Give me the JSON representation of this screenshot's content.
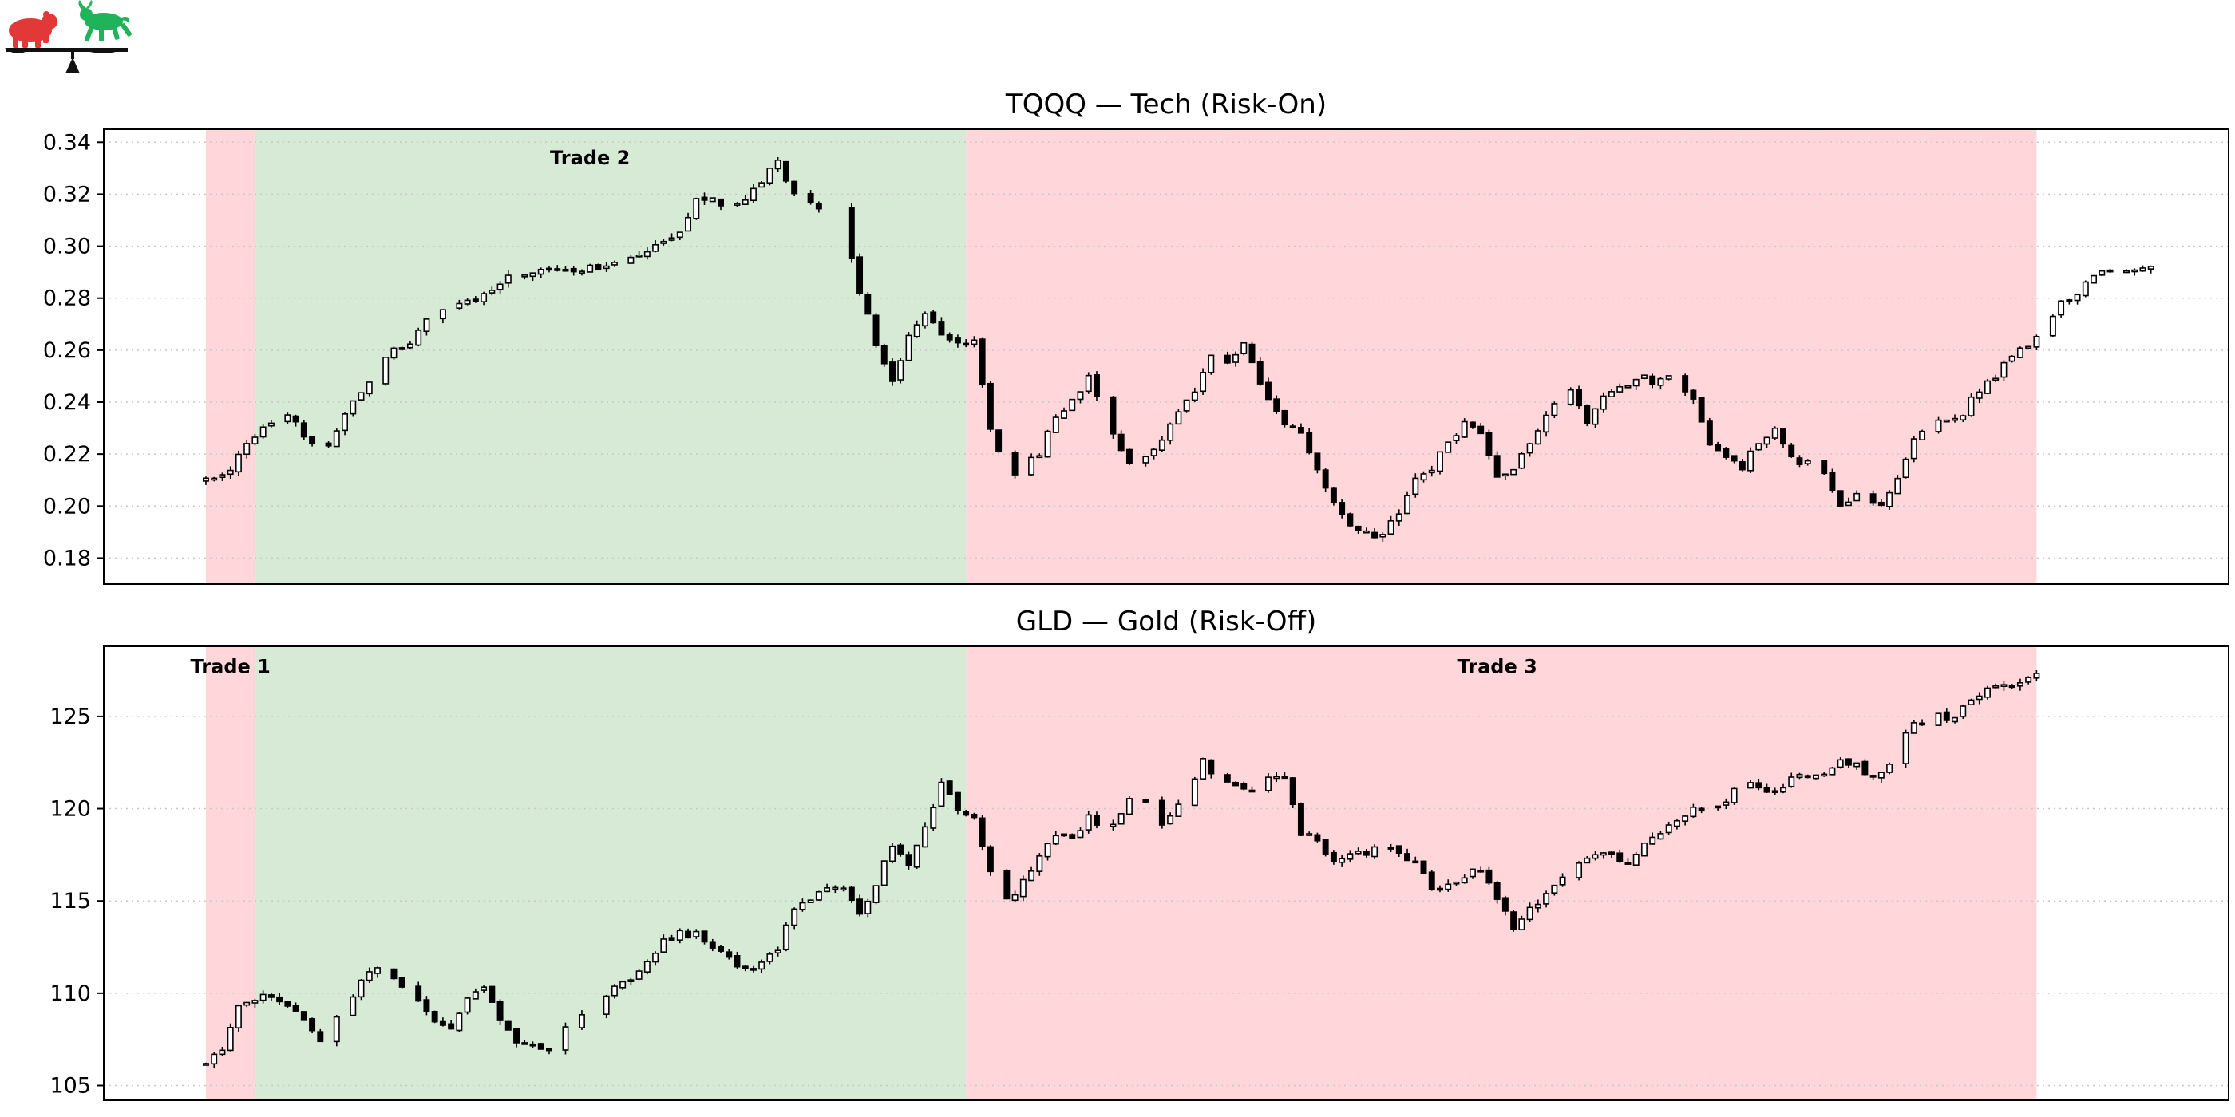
{
  "colors": {
    "risk_on_band": "#d7ead6",
    "risk_off_band": "#ffd6d9",
    "candle_up": "#ffffff",
    "candle_down": "#000000",
    "bear_logo": "#e23838",
    "bull_logo": "#1fb35a"
  },
  "logo": {
    "icon": "bull-bear-balance-scale-icon"
  },
  "chart_data": [
    {
      "type": "candlestick",
      "title": "TQQQ — Tech (Risk-On)",
      "xlabel": "",
      "ylabel": "",
      "ylim": [
        0.17,
        0.345
      ],
      "yticks": [
        0.18,
        0.2,
        0.22,
        0.24,
        0.26,
        0.28,
        0.3,
        0.32,
        0.34
      ],
      "ytick_labels": [
        "0.18",
        "0.20",
        "0.22",
        "0.24",
        "0.26",
        "0.28",
        "0.30",
        "0.32",
        "0.34"
      ],
      "grid": "horizontal-dotted",
      "bars_count": 260,
      "regions": [
        {
          "start_bar": 0,
          "end_bar": 6,
          "shade": "risk-off"
        },
        {
          "start_bar": 6,
          "end_bar": 93,
          "shade": "risk-on"
        },
        {
          "start_bar": 93,
          "end_bar": 224,
          "shade": "risk-off"
        }
      ],
      "annotations": [
        {
          "text": "Trade 2",
          "bar": 47,
          "value": 0.334
        }
      ],
      "anchors": [
        [
          0,
          0.21
        ],
        [
          3,
          0.215
        ],
        [
          5,
          0.225
        ],
        [
          8,
          0.233
        ],
        [
          10,
          0.234
        ],
        [
          13,
          0.225
        ],
        [
          15,
          0.222
        ],
        [
          17,
          0.235
        ],
        [
          20,
          0.247
        ],
        [
          22,
          0.258
        ],
        [
          25,
          0.262
        ],
        [
          28,
          0.275
        ],
        [
          32,
          0.278
        ],
        [
          36,
          0.285
        ],
        [
          38,
          0.29
        ],
        [
          42,
          0.29
        ],
        [
          45,
          0.291
        ],
        [
          48,
          0.292
        ],
        [
          51,
          0.296
        ],
        [
          55,
          0.3
        ],
        [
          58,
          0.306
        ],
        [
          60,
          0.318
        ],
        [
          62,
          0.318
        ],
        [
          65,
          0.315
        ],
        [
          67,
          0.322
        ],
        [
          70,
          0.333
        ],
        [
          72,
          0.32
        ],
        [
          74,
          0.318
        ],
        [
          76,
          0.312
        ],
        [
          78,
          0.31
        ],
        [
          80,
          0.283
        ],
        [
          82,
          0.262
        ],
        [
          84,
          0.248
        ],
        [
          86,
          0.265
        ],
        [
          88,
          0.275
        ],
        [
          90,
          0.265
        ],
        [
          92,
          0.262
        ],
        [
          94,
          0.265
        ],
        [
          96,
          0.23
        ],
        [
          98,
          0.21
        ],
        [
          100,
          0.215
        ],
        [
          102,
          0.22
        ],
        [
          104,
          0.235
        ],
        [
          106,
          0.24
        ],
        [
          108,
          0.25
        ],
        [
          110,
          0.232
        ],
        [
          113,
          0.215
        ],
        [
          116,
          0.222
        ],
        [
          119,
          0.235
        ],
        [
          121,
          0.245
        ],
        [
          123,
          0.258
        ],
        [
          125,
          0.256
        ],
        [
          127,
          0.262
        ],
        [
          129,
          0.248
        ],
        [
          131,
          0.235
        ],
        [
          134,
          0.228
        ],
        [
          136,
          0.215
        ],
        [
          138,
          0.2
        ],
        [
          140,
          0.192
        ],
        [
          142,
          0.19
        ],
        [
          144,
          0.188
        ],
        [
          146,
          0.198
        ],
        [
          148,
          0.21
        ],
        [
          150,
          0.215
        ],
        [
          152,
          0.225
        ],
        [
          154,
          0.232
        ],
        [
          156,
          0.228
        ],
        [
          158,
          0.21
        ],
        [
          160,
          0.215
        ],
        [
          162,
          0.225
        ],
        [
          165,
          0.24
        ],
        [
          167,
          0.245
        ],
        [
          169,
          0.232
        ],
        [
          171,
          0.242
        ],
        [
          173,
          0.245
        ],
        [
          175,
          0.25
        ],
        [
          177,
          0.248
        ],
        [
          180,
          0.25
        ],
        [
          182,
          0.24
        ],
        [
          184,
          0.225
        ],
        [
          186,
          0.218
        ],
        [
          188,
          0.215
        ],
        [
          190,
          0.225
        ],
        [
          192,
          0.23
        ],
        [
          194,
          0.218
        ],
        [
          196,
          0.216
        ],
        [
          198,
          0.213
        ],
        [
          200,
          0.2
        ],
        [
          203,
          0.205
        ],
        [
          205,
          0.2
        ],
        [
          207,
          0.212
        ],
        [
          209,
          0.225
        ],
        [
          211,
          0.232
        ],
        [
          213,
          0.232
        ],
        [
          215,
          0.236
        ],
        [
          217,
          0.245
        ],
        [
          219,
          0.25
        ],
        [
          221,
          0.258
        ],
        [
          223,
          0.262
        ],
        [
          225,
          0.27
        ],
        [
          227,
          0.278
        ],
        [
          229,
          0.28
        ],
        [
          231,
          0.29
        ],
        [
          233,
          0.292
        ],
        [
          235,
          0.29
        ],
        [
          237,
          0.292
        ],
        [
          239,
          0.294
        ]
      ]
    },
    {
      "type": "candlestick",
      "title": "GLD — Gold (Risk-Off)",
      "xlabel": "",
      "ylabel": "",
      "ylim": [
        104.2,
        128.8
      ],
      "yticks": [
        105,
        110,
        115,
        120,
        125
      ],
      "ytick_labels": [
        "105",
        "110",
        "115",
        "120",
        "125"
      ],
      "grid": "horizontal-dotted",
      "bars_count": 260,
      "regions": [
        {
          "start_bar": 0,
          "end_bar": 6,
          "shade": "risk-off"
        },
        {
          "start_bar": 6,
          "end_bar": 93,
          "shade": "risk-on"
        },
        {
          "start_bar": 93,
          "end_bar": 224,
          "shade": "risk-off"
        }
      ],
      "annotations": [
        {
          "text": "Trade 1",
          "bar": 3,
          "value": 127.7
        },
        {
          "text": "Trade 3",
          "bar": 158,
          "value": 127.7
        }
      ],
      "anchors": [
        [
          0,
          106.2
        ],
        [
          2,
          107
        ],
        [
          4,
          109.5
        ],
        [
          6,
          109.7
        ],
        [
          8,
          109.9
        ],
        [
          10,
          109.5
        ],
        [
          12,
          108.5
        ],
        [
          14,
          107.5
        ],
        [
          16,
          108.8
        ],
        [
          18,
          110
        ],
        [
          20,
          111.2
        ],
        [
          22,
          111.2
        ],
        [
          24,
          110.5
        ],
        [
          26,
          109.4
        ],
        [
          28,
          108.5
        ],
        [
          30,
          108.2
        ],
        [
          32,
          109.8
        ],
        [
          34,
          110.2
        ],
        [
          36,
          108.6
        ],
        [
          38,
          107.5
        ],
        [
          40,
          107.2
        ],
        [
          42,
          107
        ],
        [
          44,
          108
        ],
        [
          46,
          108.7
        ],
        [
          48,
          109.7
        ],
        [
          50,
          110.2
        ],
        [
          52,
          110.8
        ],
        [
          54,
          111.8
        ],
        [
          56,
          112.8
        ],
        [
          58,
          113.2
        ],
        [
          60,
          113.2
        ],
        [
          62,
          112.5
        ],
        [
          64,
          112
        ],
        [
          66,
          111.2
        ],
        [
          68,
          111.5
        ],
        [
          70,
          112.5
        ],
        [
          72,
          114.5
        ],
        [
          74,
          115.2
        ],
        [
          76,
          115.6
        ],
        [
          78,
          115.5
        ],
        [
          80,
          114.2
        ],
        [
          82,
          116
        ],
        [
          84,
          118
        ],
        [
          86,
          117
        ],
        [
          88,
          119
        ],
        [
          90,
          121.5
        ],
        [
          92,
          120
        ],
        [
          94,
          119.6
        ],
        [
          96,
          116.5
        ],
        [
          98,
          115
        ],
        [
          100,
          116
        ],
        [
          102,
          117.5
        ],
        [
          104,
          118.5
        ],
        [
          106,
          118.5
        ],
        [
          108,
          119.5
        ],
        [
          110,
          119
        ],
        [
          112,
          119.6
        ],
        [
          114,
          121.5
        ],
        [
          116,
          119
        ],
        [
          118,
          119.6
        ],
        [
          120,
          120.5
        ],
        [
          122,
          122.7
        ],
        [
          124,
          121.5
        ],
        [
          126,
          121.3
        ],
        [
          128,
          121
        ],
        [
          130,
          121.5
        ],
        [
          132,
          121.8
        ],
        [
          134,
          118.7
        ],
        [
          136,
          118.2
        ],
        [
          138,
          117
        ],
        [
          140,
          117.5
        ],
        [
          142,
          117.6
        ],
        [
          144,
          118
        ],
        [
          146,
          117.5
        ],
        [
          148,
          117
        ],
        [
          150,
          115.6
        ],
        [
          152,
          116
        ],
        [
          154,
          116.4
        ],
        [
          156,
          116.7
        ],
        [
          158,
          115
        ],
        [
          160,
          113.5
        ],
        [
          162,
          114.5
        ],
        [
          164,
          115.5
        ],
        [
          166,
          116.2
        ],
        [
          168,
          117
        ],
        [
          170,
          117.6
        ],
        [
          172,
          117.4
        ],
        [
          174,
          117.2
        ],
        [
          176,
          118.2
        ],
        [
          178,
          118.8
        ],
        [
          180,
          119.5
        ],
        [
          182,
          120
        ],
        [
          184,
          119.8
        ],
        [
          186,
          120.5
        ],
        [
          188,
          121.3
        ],
        [
          190,
          121.2
        ],
        [
          192,
          121
        ],
        [
          194,
          121.6
        ],
        [
          196,
          121.8
        ],
        [
          198,
          122
        ],
        [
          200,
          122.5
        ],
        [
          202,
          122.4
        ],
        [
          204,
          121.6
        ],
        [
          206,
          122.5
        ],
        [
          208,
          124.2
        ],
        [
          210,
          124.7
        ],
        [
          212,
          125
        ],
        [
          214,
          124.9
        ],
        [
          216,
          126
        ],
        [
          218,
          126.5
        ],
        [
          220,
          126.7
        ],
        [
          222,
          126.9
        ],
        [
          224,
          127.2
        ]
      ]
    }
  ]
}
